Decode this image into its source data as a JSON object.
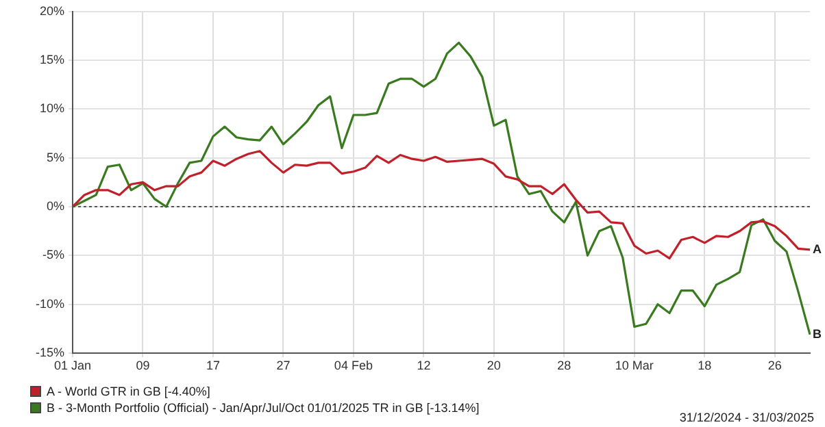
{
  "chart_data": {
    "type": "line",
    "categories": [
      "01 Jan",
      null,
      null,
      null,
      null,
      null,
      "09",
      null,
      null,
      null,
      null,
      null,
      "17",
      null,
      null,
      null,
      null,
      null,
      "27",
      null,
      null,
      null,
      null,
      null,
      "04 Feb",
      null,
      null,
      null,
      null,
      null,
      "12",
      null,
      null,
      null,
      null,
      null,
      "20",
      null,
      null,
      null,
      null,
      null,
      "28",
      null,
      null,
      null,
      null,
      null,
      "10 Mar",
      null,
      null,
      null,
      null,
      null,
      "18",
      null,
      null,
      null,
      null,
      null,
      "26",
      null,
      null,
      null
    ],
    "series": [
      {
        "name": "A - World GTR in GB [-4.40%]",
        "color": "#c0202a",
        "values": [
          0,
          1.2,
          1.7,
          1.7,
          1.2,
          2.3,
          2.5,
          1.7,
          2.1,
          2.1,
          3.1,
          3.5,
          4.7,
          4.2,
          4.9,
          5.4,
          5.7,
          4.5,
          3.5,
          4.3,
          4.2,
          4.5,
          4.5,
          3.4,
          3.6,
          4.0,
          5.2,
          4.5,
          5.3,
          4.9,
          4.7,
          5.1,
          4.6,
          4.7,
          4.8,
          4.9,
          4.4,
          3.1,
          2.8,
          2.1,
          2.1,
          1.3,
          2.3,
          0.7,
          -0.6,
          -0.5,
          -1.6,
          -1.7,
          -4.0,
          -4.8,
          -4.5,
          -5.3,
          -3.4,
          -3.1,
          -3.7,
          -3.0,
          -3.1,
          -2.5,
          -1.6,
          -1.5,
          -2.0,
          -3.0,
          -4.3,
          -4.4
        ]
      },
      {
        "name": "B - 3-Month Portfolio (Official) - Jan/Apr/Jul/Oct 01/01/2025 TR in GB [-13.14%]",
        "color": "#3a7a1e",
        "values": [
          0,
          0.6,
          1.2,
          4.1,
          4.3,
          1.7,
          2.4,
          0.8,
          0,
          2.4,
          4.5,
          4.7,
          7.2,
          8.2,
          7.1,
          6.9,
          6.8,
          8.2,
          6.4,
          7.5,
          8.7,
          10.4,
          11.3,
          6.0,
          9.4,
          9.4,
          9.6,
          12.6,
          13.1,
          13.1,
          12.3,
          13.1,
          15.7,
          16.8,
          15.4,
          13.3,
          8.3,
          8.9,
          3.1,
          1.3,
          1.6,
          -0.5,
          -1.6,
          0.5,
          -5.0,
          -2.5,
          -2.0,
          -5.2,
          -12.3,
          -12.0,
          -10.0,
          -10.9,
          -8.6,
          -8.6,
          -10.2,
          -8.0,
          -7.4,
          -6.7,
          -1.9,
          -1.3,
          -3.5,
          -4.6,
          -8.7,
          -13.1
        ]
      }
    ],
    "ylim": [
      -15,
      20
    ],
    "yticks": [
      {
        "value": -15,
        "label": "-15%"
      },
      {
        "value": -10,
        "label": "-10%"
      },
      {
        "value": -5,
        "label": "-5%"
      },
      {
        "value": 0,
        "label": "0%"
      },
      {
        "value": 5,
        "label": "5%"
      },
      {
        "value": 10,
        "label": "10%"
      },
      {
        "value": 15,
        "label": "15%"
      },
      {
        "value": 20,
        "label": "20%"
      }
    ],
    "grid": true,
    "legend": "bottom left",
    "marker": "none",
    "line_style": "solid",
    "ref_lines": [
      {
        "axis": "y",
        "value": 0,
        "line_style": "dotted",
        "color": "#555555"
      }
    ],
    "annotations": [
      "A",
      "B",
      "31/12/2024 - 31/03/2025"
    ]
  }
}
